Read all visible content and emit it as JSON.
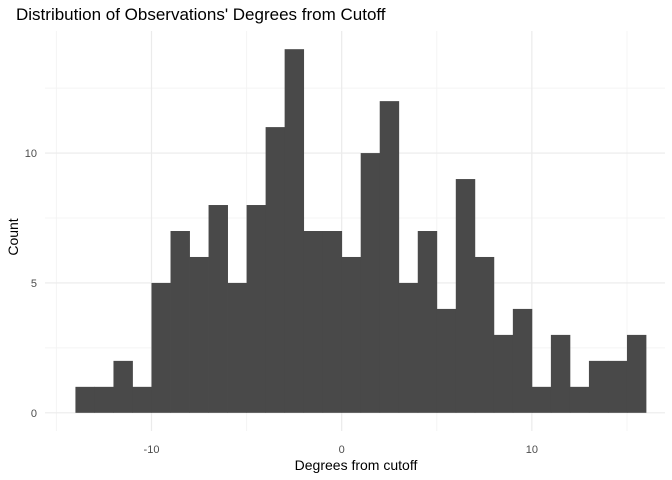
{
  "chart_data": {
    "type": "bar",
    "title": "Distribution of Observations' Degrees from Cutoff",
    "xlabel": "Degrees from cutoff",
    "ylabel": "Count",
    "bin_width": 1,
    "bins": [
      {
        "start": -14,
        "count": 1
      },
      {
        "start": -13,
        "count": 1
      },
      {
        "start": -12,
        "count": 2
      },
      {
        "start": -11,
        "count": 1
      },
      {
        "start": -10,
        "count": 5
      },
      {
        "start": -9,
        "count": 7
      },
      {
        "start": -8,
        "count": 6
      },
      {
        "start": -7,
        "count": 8
      },
      {
        "start": -6,
        "count": 5
      },
      {
        "start": -5,
        "count": 8
      },
      {
        "start": -4,
        "count": 11
      },
      {
        "start": -3,
        "count": 14
      },
      {
        "start": -2,
        "count": 7
      },
      {
        "start": -1,
        "count": 7
      },
      {
        "start": 0,
        "count": 6
      },
      {
        "start": 1,
        "count": 10
      },
      {
        "start": 2,
        "count": 12
      },
      {
        "start": 3,
        "count": 5
      },
      {
        "start": 4,
        "count": 7
      },
      {
        "start": 5,
        "count": 4
      },
      {
        "start": 6,
        "count": 9
      },
      {
        "start": 7,
        "count": 6
      },
      {
        "start": 8,
        "count": 3
      },
      {
        "start": 9,
        "count": 4
      },
      {
        "start": 10,
        "count": 1
      },
      {
        "start": 11,
        "count": 3
      },
      {
        "start": 12,
        "count": 1
      },
      {
        "start": 13,
        "count": 2
      },
      {
        "start": 14,
        "count": 2
      },
      {
        "start": 15,
        "count": 3
      }
    ],
    "x_ticks": [
      -10,
      0,
      10
    ],
    "x_tick_labels": [
      "-10",
      "0",
      "10"
    ],
    "y_ticks": [
      0,
      5,
      10
    ],
    "y_tick_labels": [
      "0",
      "5",
      "10"
    ],
    "xlim": [
      -15.6,
      17.0
    ],
    "ylim": [
      -0.7,
      14.7
    ],
    "grid": true,
    "legend": "none",
    "colors": {
      "bar": "#494949",
      "grid_major": "#ebebeb",
      "grid_minor": "#f4f4f4"
    }
  }
}
